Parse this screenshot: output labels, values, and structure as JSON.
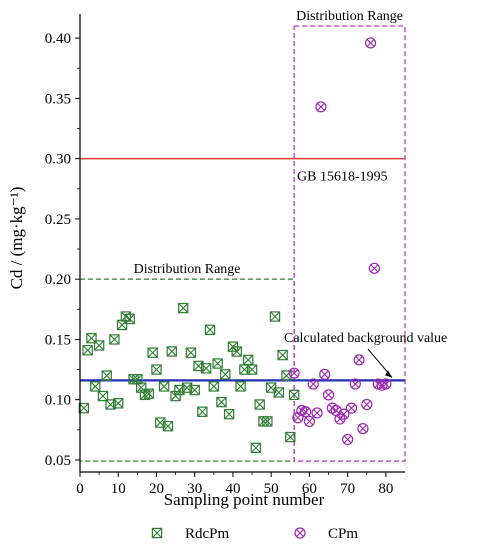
{
  "chart_data": {
    "type": "scatter",
    "title": "",
    "xlabel": "Sampling point number",
    "ylabel": "Cd / (mg·kg⁻¹)",
    "xlim": [
      0,
      85
    ],
    "ylim": [
      0.04,
      0.42
    ],
    "xticks": [
      0,
      10,
      20,
      30,
      40,
      50,
      60,
      70,
      80
    ],
    "yticks": [
      0.05,
      0.1,
      0.15,
      0.2,
      0.25,
      0.3,
      0.35,
      0.4
    ],
    "ytick_labels": [
      "0.05",
      "0.10",
      "0.15",
      "0.20",
      "0.25",
      "0.30",
      "0.35",
      "0.40"
    ],
    "legend_position": "bottom",
    "series": [
      {
        "name": "RdcPm",
        "color": "#2e7d32",
        "marker": "square-x",
        "x": [
          1,
          2,
          3,
          4,
          5,
          6,
          7,
          8,
          9,
          10,
          11,
          12,
          13,
          14,
          15,
          16,
          17,
          18,
          19,
          20,
          21,
          22,
          23,
          24,
          25,
          26,
          27,
          28,
          29,
          30,
          31,
          32,
          33,
          34,
          35,
          36,
          37,
          38,
          39,
          40,
          41,
          42,
          43,
          44,
          45,
          46,
          47,
          48,
          49,
          50,
          51,
          52,
          53,
          54,
          55,
          56
        ],
        "y": [
          0.093,
          0.141,
          0.151,
          0.111,
          0.145,
          0.103,
          0.12,
          0.096,
          0.15,
          0.097,
          0.162,
          0.169,
          0.167,
          0.117,
          0.117,
          0.11,
          0.104,
          0.105,
          0.139,
          0.125,
          0.081,
          0.111,
          0.078,
          0.14,
          0.103,
          0.108,
          0.176,
          0.11,
          0.139,
          0.108,
          0.128,
          0.09,
          0.126,
          0.158,
          0.111,
          0.13,
          0.098,
          0.121,
          0.088,
          0.144,
          0.14,
          0.111,
          0.125,
          0.133,
          0.125,
          0.06,
          0.096,
          0.082,
          0.082,
          0.11,
          0.169,
          0.106,
          0.137,
          0.12,
          0.069,
          0.104
        ]
      },
      {
        "name": "CPm",
        "color": "#9c27b0",
        "marker": "circle-x",
        "x": [
          56,
          57,
          58,
          59,
          60,
          61,
          62,
          63,
          64,
          65,
          66,
          67,
          68,
          69,
          70,
          71,
          72,
          73,
          74,
          75,
          76,
          77,
          78,
          79,
          80
        ],
        "y": [
          0.122,
          0.085,
          0.091,
          0.09,
          0.082,
          0.113,
          0.089,
          0.343,
          0.121,
          0.104,
          0.093,
          0.091,
          0.084,
          0.088,
          0.067,
          0.093,
          0.113,
          0.133,
          0.076,
          0.096,
          0.396,
          0.209,
          0.113,
          0.112,
          0.113
        ]
      }
    ],
    "reference_lines": [
      {
        "y": 0.3,
        "color": "#e53935",
        "label": "GB 15618-1995"
      },
      {
        "y": 0.116,
        "color": "#1f2fb5",
        "label": "Calculated background value"
      }
    ],
    "ranges": [
      {
        "label": "Distribution Range",
        "color": "#2e7d32",
        "x": [
          0,
          56
        ],
        "y": [
          0.049,
          0.2
        ]
      },
      {
        "label": "Distribution Range",
        "color": "#c026d3",
        "x": [
          56,
          85
        ],
        "y": [
          0.049,
          0.41
        ]
      }
    ]
  }
}
